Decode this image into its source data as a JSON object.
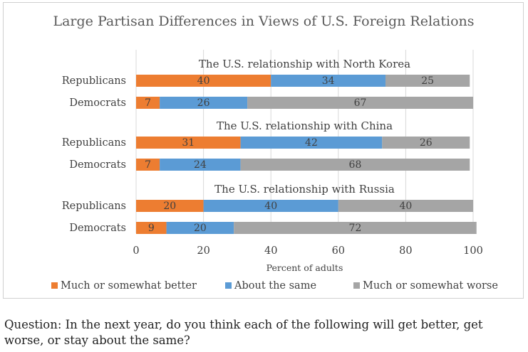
{
  "chart_data": {
    "type": "bar",
    "orientation": "horizontal",
    "stacked": true,
    "title": "Large Partisan Differences in Views of U.S. Foreign Relations",
    "xlabel": "Percent of adults",
    "xlim": [
      0,
      100
    ],
    "xticks": [
      "0",
      "20",
      "40",
      "60",
      "80",
      "100"
    ],
    "grid": true,
    "legend_position": "bottom",
    "series": [
      {
        "name": "Much or somewhat better",
        "color": "#ed7d31"
      },
      {
        "name": "About the same",
        "color": "#5b9bd5"
      },
      {
        "name": "Much or somewhat worse",
        "color": "#a5a5a5"
      }
    ],
    "groups": [
      {
        "title": "The U.S. relationship with North Korea",
        "rows": [
          {
            "label": "Republicans",
            "values": [
              40,
              34,
              25
            ]
          },
          {
            "label": "Democrats",
            "values": [
              7,
              26,
              67
            ]
          }
        ]
      },
      {
        "title": "The U.S. relationship with China",
        "rows": [
          {
            "label": "Republicans",
            "values": [
              31,
              42,
              26
            ]
          },
          {
            "label": "Democrats",
            "values": [
              7,
              24,
              68
            ]
          }
        ]
      },
      {
        "title": "The U.S. relationship with Russia",
        "rows": [
          {
            "label": "Republicans",
            "values": [
              20,
              40,
              40
            ]
          },
          {
            "label": "Democrats",
            "values": [
              9,
              20,
              72
            ]
          }
        ]
      }
    ]
  },
  "question": "Question: In the next year, do you think each of the following will get better, get worse, or stay about the same?"
}
